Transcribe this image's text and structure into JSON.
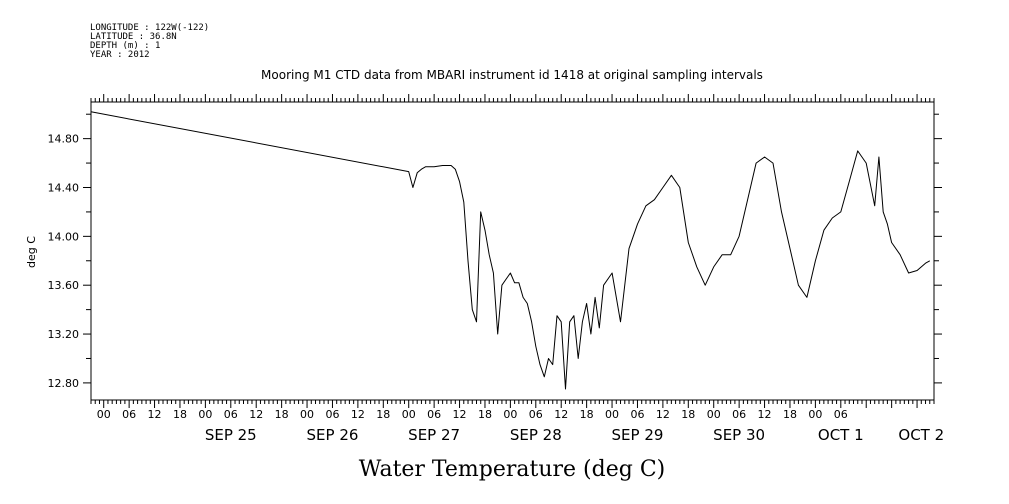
{
  "meta": {
    "longitude": "LONGITUDE : 122W(-122)",
    "latitude": "LATITUDE : 36.8N",
    "depth": "DEPTH (m) : 1",
    "year": "YEAR : 2012"
  },
  "chart_data": {
    "type": "line",
    "title": "Mooring M1 CTD data from MBARI instrument id 1418 at original sampling intervals",
    "xlabel": "Water Temperature (deg C)",
    "ylabel": "deg C",
    "ylim": [
      12.66,
      15.1
    ],
    "xlim": [
      "2012-09-24T03:00",
      "2012-10-02T10:00"
    ],
    "yticks": [
      "12.80",
      "13.20",
      "13.60",
      "14.00",
      "14.40",
      "14.80"
    ],
    "xhour_ticks": [
      "00",
      "06",
      "12",
      "18",
      "00",
      "06",
      "12",
      "18",
      "00",
      "06",
      "12",
      "18",
      "00",
      "06",
      "12",
      "18",
      "00",
      "06",
      "12",
      "18",
      "00",
      "06",
      "12",
      "18",
      "00",
      "06",
      "12",
      "18",
      "00",
      "06"
    ],
    "date_labels": [
      "SEP 25",
      "SEP 26",
      "SEP 27",
      "SEP 28",
      "SEP 29",
      "SEP 30",
      "OCT  1",
      "OCT  2"
    ],
    "grid": false,
    "series": [
      {
        "color": "#000000",
        "x": [
          "2012-09-24T03:00",
          "2012-09-27T06:00",
          "2012-09-27T07:00",
          "2012-09-27T08:00",
          "2012-09-27T09:00",
          "2012-09-27T10:00",
          "2012-09-27T12:00",
          "2012-09-27T14:00",
          "2012-09-27T16:00",
          "2012-09-27T17:00",
          "2012-09-27T18:00",
          "2012-09-27T19:00",
          "2012-09-27T20:00",
          "2012-09-27T21:00",
          "2012-09-27T22:00",
          "2012-09-27T23:00",
          "2012-09-28T00:00",
          "2012-09-28T01:00",
          "2012-09-28T02:00",
          "2012-09-28T03:00",
          "2012-09-28T04:00",
          "2012-09-28T05:00",
          "2012-09-28T06:00",
          "2012-09-28T07:00",
          "2012-09-28T08:00",
          "2012-09-28T09:00",
          "2012-09-28T10:00",
          "2012-09-28T11:00",
          "2012-09-28T12:00",
          "2012-09-28T13:00",
          "2012-09-28T14:00",
          "2012-09-28T15:00",
          "2012-09-28T16:00",
          "2012-09-28T17:00",
          "2012-09-28T18:00",
          "2012-09-28T19:00",
          "2012-09-28T20:00",
          "2012-09-28T21:00",
          "2012-09-28T22:00",
          "2012-09-28T23:00",
          "2012-09-29T00:00",
          "2012-09-29T01:00",
          "2012-09-29T02:00",
          "2012-09-29T03:00",
          "2012-09-29T04:00",
          "2012-09-29T06:00",
          "2012-09-29T08:00",
          "2012-09-29T10:00",
          "2012-09-29T12:00",
          "2012-09-29T14:00",
          "2012-09-29T16:00",
          "2012-09-29T18:00",
          "2012-09-29T20:00",
          "2012-09-29T22:00",
          "2012-09-30T00:00",
          "2012-09-30T02:00",
          "2012-09-30T04:00",
          "2012-09-30T06:00",
          "2012-09-30T08:00",
          "2012-09-30T10:00",
          "2012-09-30T12:00",
          "2012-09-30T14:00",
          "2012-09-30T16:00",
          "2012-09-30T18:00",
          "2012-09-30T20:00",
          "2012-09-30T22:00",
          "2012-10-01T00:00",
          "2012-10-01T02:00",
          "2012-10-01T04:00",
          "2012-10-01T06:00",
          "2012-10-01T08:00",
          "2012-10-01T10:00",
          "2012-10-01T12:00",
          "2012-10-01T14:00",
          "2012-10-01T16:00",
          "2012-10-01T18:00",
          "2012-10-01T20:00",
          "2012-10-01T21:00",
          "2012-10-01T22:00",
          "2012-10-01T23:00",
          "2012-10-02T00:00",
          "2012-10-02T02:00",
          "2012-10-02T04:00",
          "2012-10-02T06:00",
          "2012-10-02T08:00",
          "2012-10-02T09:00"
        ],
        "y": [
          15.02,
          14.53,
          14.4,
          14.52,
          14.55,
          14.57,
          14.57,
          14.58,
          14.58,
          14.55,
          14.45,
          14.28,
          13.8,
          13.4,
          13.3,
          14.2,
          14.05,
          13.85,
          13.7,
          13.2,
          13.6,
          13.65,
          13.7,
          13.62,
          13.62,
          13.5,
          13.45,
          13.3,
          13.1,
          12.95,
          12.85,
          13.0,
          12.95,
          13.35,
          13.3,
          12.75,
          13.3,
          13.35,
          13.0,
          13.3,
          13.45,
          13.2,
          13.5,
          13.25,
          13.6,
          13.7,
          13.3,
          13.9,
          14.1,
          14.25,
          14.3,
          14.4,
          14.5,
          14.4,
          13.95,
          13.75,
          13.6,
          13.75,
          13.85,
          13.85,
          14.0,
          14.3,
          14.6,
          14.65,
          14.6,
          14.2,
          13.9,
          13.6,
          13.5,
          13.8,
          14.05,
          14.15,
          14.2,
          14.45,
          14.7,
          14.6,
          14.25,
          14.65,
          14.2,
          14.1,
          13.95,
          13.85,
          13.7,
          13.72,
          13.78,
          13.8
        ]
      }
    ]
  }
}
